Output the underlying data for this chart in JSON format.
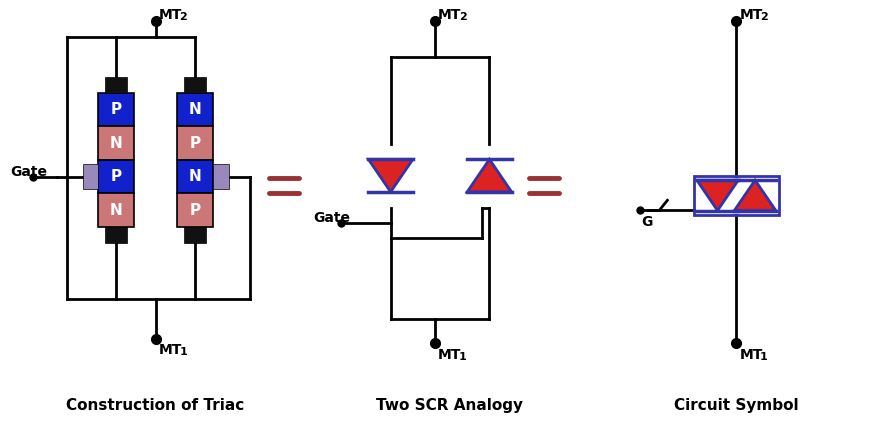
{
  "title1": "Construction of Triac",
  "title2": "Two SCR Analogy",
  "title3": "Circuit Symbol",
  "blue_color": "#1122CC",
  "pink_color": "#CC7777",
  "gray_color": "#9988BB",
  "eq_color": "#993333",
  "bg_color": "#FFFFFF",
  "line_color": "#000000",
  "diode_red": "#DD2222",
  "diode_blue": "#3333AA"
}
